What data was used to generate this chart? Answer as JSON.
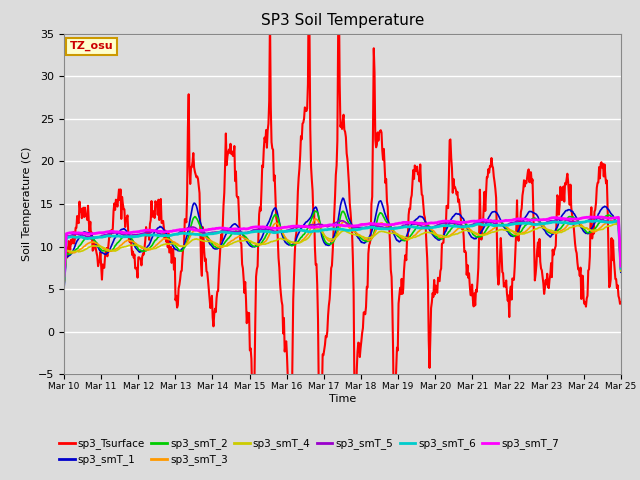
{
  "title": "SP3 Soil Temperature",
  "xlabel": "Time",
  "ylabel": "Soil Temperature (C)",
  "ylim": [
    -5,
    35
  ],
  "bg_color": "#dcdcdc",
  "annotation_text": "TZ_osu",
  "annotation_color": "#cc0000",
  "annotation_bg": "#ffffcc",
  "annotation_border": "#cc9900",
  "series_names": [
    "sp3_Tsurface",
    "sp3_smT_1",
    "sp3_smT_2",
    "sp3_smT_3",
    "sp3_smT_4",
    "sp3_smT_5",
    "sp3_smT_6",
    "sp3_smT_7"
  ],
  "series_colors": [
    "#ff0000",
    "#0000cc",
    "#00cc00",
    "#ff9900",
    "#cccc00",
    "#9900cc",
    "#00cccc",
    "#ff00ff"
  ],
  "series_lw": [
    1.5,
    1.2,
    1.2,
    1.2,
    1.2,
    1.2,
    2.0,
    2.0
  ],
  "xtick_labels": [
    "Mar 10",
    "Mar 11",
    "Mar 12",
    "Mar 13",
    "Mar 14",
    "Mar 15",
    "Mar 16",
    "Mar 17",
    "Mar 18",
    "Mar 19",
    "Mar 20",
    "Mar 21",
    "Mar 22",
    "Mar 23",
    "Mar 24",
    "Mar 25"
  ],
  "ytick_vals": [
    -5,
    0,
    5,
    10,
    15,
    20,
    25,
    30,
    35
  ]
}
